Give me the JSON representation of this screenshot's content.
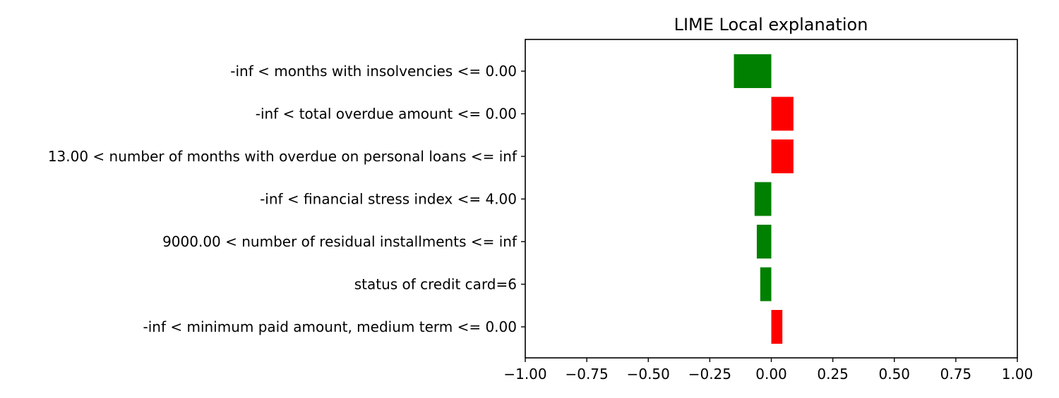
{
  "chart_data": {
    "type": "bar",
    "orientation": "horizontal",
    "title": "LIME Local explanation",
    "xlabel": "",
    "ylabel": "",
    "xlim": [
      -1.0,
      1.0
    ],
    "xticks": [
      "−1.00",
      "−0.75",
      "−0.50",
      "−0.25",
      "0.00",
      "0.25",
      "0.50",
      "0.75",
      "1.00"
    ],
    "xtick_values": [
      -1.0,
      -0.75,
      -0.5,
      -0.25,
      0.0,
      0.25,
      0.5,
      0.75,
      1.0
    ],
    "grid": false,
    "categories": [
      "-inf < months with insolvencies <= 0.00",
      "-inf < total overdue amount <= 0.00",
      "13.00 < number of months with overdue on personal loans <= inf",
      "-inf < financial stress index <= 4.00",
      "9000.00 < number of residual installments <= inf",
      "status of credit card=6",
      "-inf < minimum paid amount, medium term <= 0.00"
    ],
    "values": [
      -0.152,
      0.09,
      0.09,
      -0.068,
      -0.059,
      -0.045,
      0.045
    ],
    "colors": {
      "negative": "#008000",
      "positive": "#ff0000"
    }
  }
}
